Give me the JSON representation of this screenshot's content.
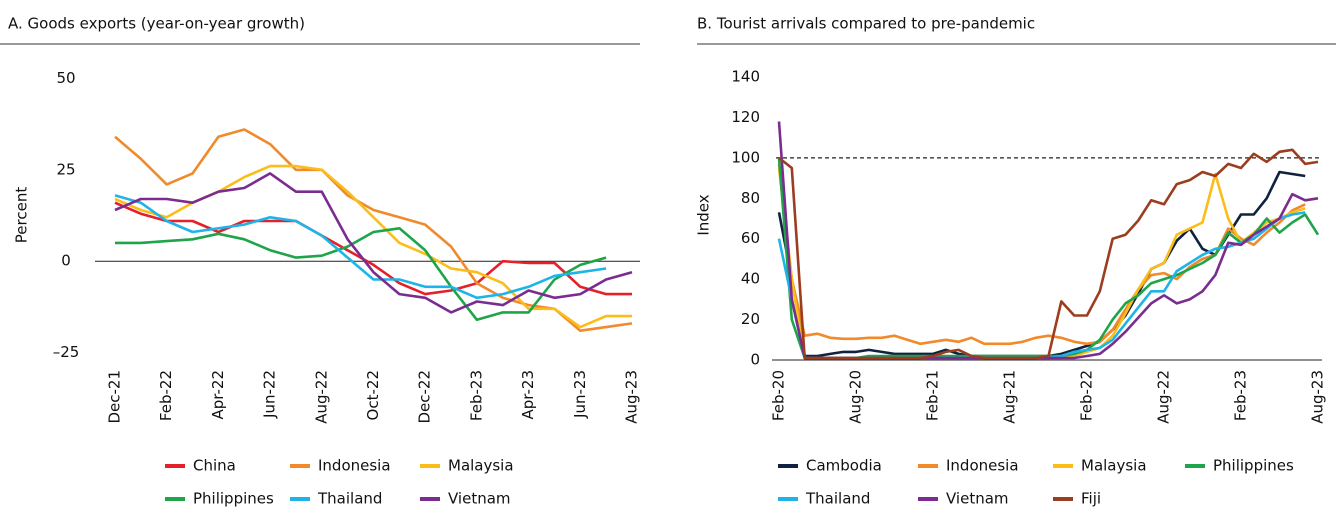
{
  "chart_data": [
    {
      "type": "line",
      "title": "A. Goods exports (year-on-year growth)",
      "y_label": "Percent",
      "categories": [
        "Dec-21",
        null,
        "Feb-22",
        null,
        "Apr-22",
        null,
        "Jun-22",
        null,
        "Aug-22",
        null,
        "Oct-22",
        null,
        "Dec-22",
        null,
        "Feb-23",
        null,
        "Apr-23",
        null,
        "Jun-23",
        null,
        "Aug-23"
      ],
      "ylim": [
        -27,
        55
      ],
      "yticks": [
        50,
        25,
        0,
        {
          "value": -25,
          "label": "–25"
        }
      ],
      "zero_line": true,
      "series": [
        {
          "name": "China",
          "color": "#e4202a",
          "values": [
            16,
            13,
            11,
            11,
            8,
            11,
            11,
            11,
            7,
            3,
            -1,
            -6,
            -9,
            -8,
            -6,
            0,
            -0.5,
            -0.5,
            -7,
            -9,
            -9
          ]
        },
        {
          "name": "Indonesia",
          "color": "#f08a2b",
          "values": [
            34,
            28,
            21,
            24,
            34,
            36,
            32,
            25,
            25,
            18,
            14,
            12,
            10,
            4,
            -6,
            -10,
            -12,
            -13,
            -19,
            -18,
            -17
          ]
        },
        {
          "name": "Malaysia",
          "color": "#fbbd18",
          "values": [
            17,
            14,
            12,
            16,
            19,
            23,
            26,
            26,
            25,
            19,
            12,
            5,
            2,
            -2,
            -3,
            -6,
            -13,
            -13,
            -18,
            -15,
            -15
          ]
        },
        {
          "name": "Philippines",
          "color": "#1ea54a",
          "values": [
            5,
            5,
            5.5,
            6,
            7.5,
            6,
            3,
            1,
            1.5,
            4,
            8,
            9,
            3,
            -7,
            -16,
            -14,
            -14,
            -5,
            -1,
            1,
            null
          ]
        },
        {
          "name": "Thailand",
          "color": "#1eb4e8",
          "values": [
            18,
            16,
            11,
            8,
            9,
            10,
            12,
            11,
            7,
            1,
            -5,
            -5,
            -7,
            -7,
            -10,
            -9,
            -7,
            -4,
            -3,
            -2,
            null
          ]
        },
        {
          "name": "Vietnam",
          "color": "#7b2c8f",
          "values": [
            14,
            17,
            17,
            16,
            19,
            20,
            24,
            19,
            19,
            6,
            -3,
            -9,
            -10,
            -14,
            -11,
            -12,
            -8,
            -10,
            -9,
            -5,
            -3
          ]
        }
      ]
    },
    {
      "type": "line",
      "title": "B. Tourist arrivals compared to pre-pandemic",
      "y_label": "Index",
      "categories": [
        "Feb-20",
        null,
        null,
        null,
        null,
        null,
        "Aug-20",
        null,
        null,
        null,
        null,
        null,
        "Feb-21",
        null,
        null,
        null,
        null,
        null,
        "Aug-21",
        null,
        null,
        null,
        null,
        null,
        "Feb-22",
        null,
        null,
        null,
        null,
        null,
        "Aug-22",
        null,
        null,
        null,
        null,
        null,
        "Feb-23",
        null,
        null,
        null,
        null,
        null,
        "Aug-23"
      ],
      "ylim": [
        0,
        140
      ],
      "yticks": [
        0,
        20,
        40,
        60,
        80,
        100,
        120,
        140
      ],
      "reference_line": 100,
      "zero_line": true,
      "series": [
        {
          "name": "Cambodia",
          "color": "#0f2340",
          "values": [
            73,
            40,
            2,
            2,
            3,
            4,
            4,
            5,
            4,
            3,
            3,
            3,
            3,
            5,
            3,
            2,
            2,
            2,
            2,
            2,
            2,
            2,
            3,
            5,
            7,
            9,
            15,
            22,
            33,
            45,
            48,
            59,
            65,
            55,
            52,
            62,
            72,
            72,
            80,
            93,
            92,
            91,
            null
          ]
        },
        {
          "name": "Indonesia",
          "color": "#f08a2b",
          "values": [
            97,
            40,
            12,
            13,
            11,
            10.5,
            10.5,
            11,
            11,
            12,
            10,
            8,
            9,
            10,
            9,
            11,
            8,
            8,
            8,
            9,
            11,
            12,
            11,
            9,
            8,
            9,
            15,
            25,
            35,
            42,
            43,
            40,
            46,
            50,
            52,
            65,
            60,
            57,
            63,
            68,
            74,
            77,
            null
          ]
        },
        {
          "name": "Malaysia",
          "color": "#fbbd18",
          "values": [
            95,
            40,
            1,
            1,
            1,
            1,
            1,
            1,
            1,
            1,
            1,
            1,
            1,
            1,
            1,
            1,
            1,
            1,
            1,
            1,
            1,
            1,
            1,
            2,
            4,
            6,
            12,
            23,
            35,
            45,
            48,
            62,
            65,
            68,
            92,
            70,
            58,
            63,
            68,
            70,
            73,
            75,
            null
          ]
        },
        {
          "name": "Philippines",
          "color": "#1ea54a",
          "values": [
            100,
            20,
            1,
            1,
            1,
            1,
            1,
            2,
            2,
            2,
            2,
            2,
            2,
            2,
            2,
            2,
            2,
            2,
            2,
            2,
            2,
            2,
            2,
            3,
            5,
            10,
            20,
            28,
            32,
            38,
            40,
            42,
            45,
            48,
            52,
            63,
            58,
            62,
            70,
            63,
            68,
            72,
            62
          ]
        },
        {
          "name": "Thailand",
          "color": "#1eb4e8",
          "values": [
            60,
            30,
            1,
            1,
            1,
            1,
            1,
            1,
            1,
            1,
            1,
            1,
            1,
            1,
            1,
            1,
            1,
            1,
            1,
            1,
            1,
            1,
            2,
            4,
            5,
            6,
            10,
            18,
            26,
            34,
            34,
            44,
            48,
            52,
            55,
            56,
            58,
            60,
            65,
            70,
            72,
            73,
            null
          ]
        },
        {
          "name": "Vietnam",
          "color": "#7b2c8f",
          "values": [
            118,
            30,
            1,
            1,
            1,
            1,
            1,
            1,
            1,
            1,
            1,
            1,
            1,
            1,
            1,
            1,
            1,
            1,
            1,
            1,
            1,
            1,
            1,
            1,
            2,
            3,
            8,
            14,
            21,
            28,
            32,
            28,
            30,
            34,
            42,
            58,
            57,
            62,
            66,
            70,
            82,
            79,
            80
          ]
        },
        {
          "name": "Fiji",
          "color": "#9b3d1e",
          "values": [
            100,
            95,
            1,
            1,
            1,
            1,
            1,
            1,
            1,
            1,
            1,
            1,
            2,
            4,
            5,
            2,
            1,
            1,
            1,
            1,
            1,
            2,
            29,
            22,
            22,
            34,
            60,
            62,
            69,
            79,
            77,
            87,
            89,
            93,
            91,
            97,
            95,
            102,
            98,
            103,
            104,
            97,
            98
          ]
        }
      ]
    }
  ]
}
